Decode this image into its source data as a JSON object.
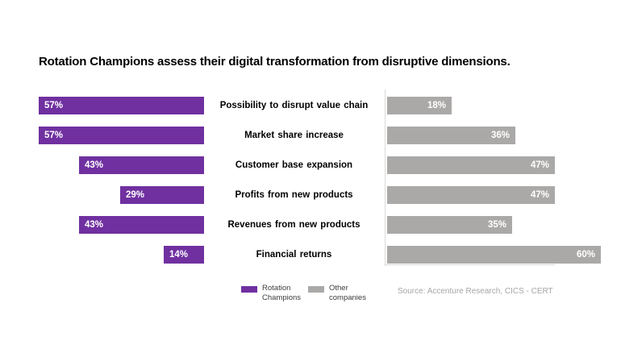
{
  "title": "Rotation Champions assess their digital transformation from disruptive dimensions.",
  "chart_data": {
    "type": "bar",
    "orientation": "horizontal-diverging-tornado",
    "title": "Rotation Champions assess their digital transformation from disruptive dimensions.",
    "categories": [
      "Possibility to disrupt value chain",
      "Market share increase",
      "Customer base expansion",
      "Profits from new products",
      "Revenues from new products",
      "Financial returns"
    ],
    "series": [
      {
        "name": "Rotation Champions",
        "color": "#7030A0",
        "values": [
          57,
          57,
          43,
          29,
          43,
          14
        ]
      },
      {
        "name": "Other companies",
        "color": "#ABA9A8",
        "values": [
          18,
          36,
          47,
          47,
          35,
          60
        ]
      }
    ],
    "value_suffix": "%",
    "value_labels": "inside-outer-end, white bold",
    "xlim": [
      0,
      60
    ],
    "grid": false,
    "legend_position": "bottom-center",
    "source": "Source: Accenture Research, CICS - CERT"
  },
  "legend": {
    "items": [
      {
        "line1": "Rotation",
        "line2": "Champions"
      },
      {
        "line1": "Other",
        "line2": "companies"
      }
    ]
  },
  "source_note": "Source: Accenture Research, CICS - CERT",
  "colors": {
    "champions_purple": "#7030A0",
    "others_gray": "#ABA9A8",
    "axis_line": "#D9D9D9",
    "source_text": "#A6A6A6",
    "title_text": "#000000"
  }
}
